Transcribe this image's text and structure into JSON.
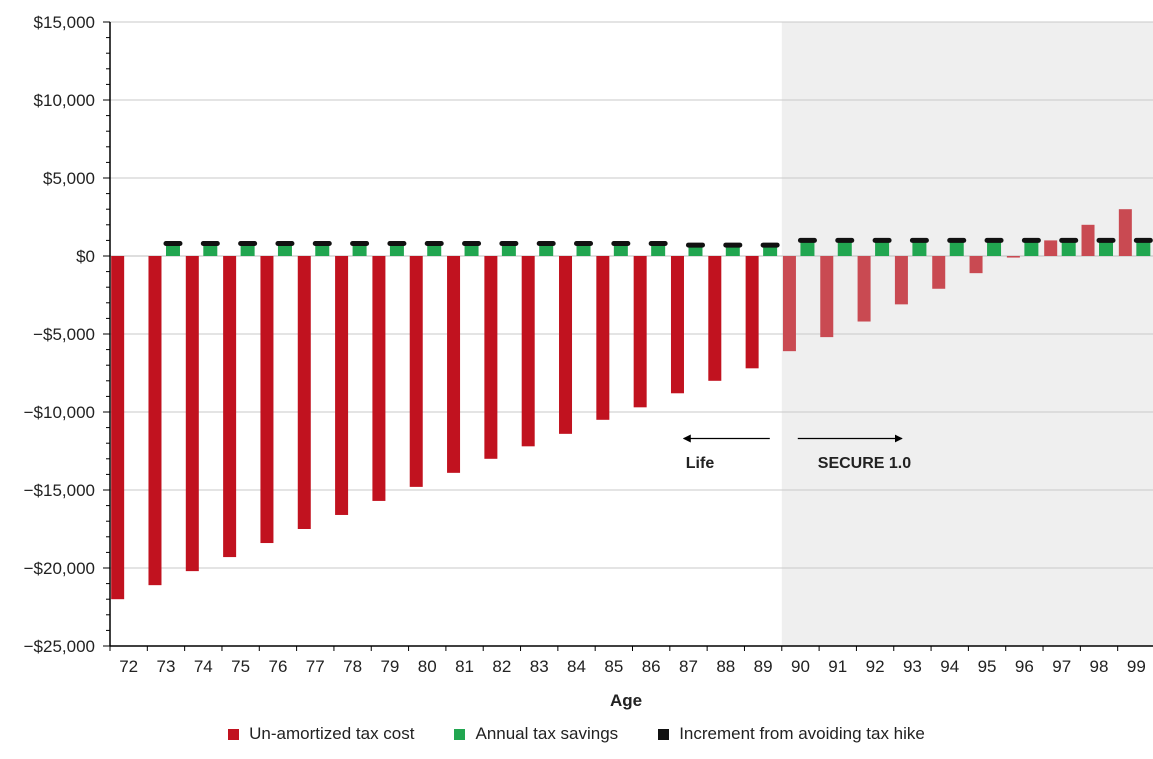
{
  "chart_data": {
    "type": "bar",
    "xlabel": "Age",
    "ylabel": "",
    "ylim": [
      -25000,
      15000
    ],
    "yticks": [
      15000,
      10000,
      5000,
      0,
      -5000,
      -10000,
      -15000,
      -20000,
      -25000
    ],
    "ytick_labels": [
      "$15,000",
      "$10,000",
      "$5,000",
      "$0",
      "−$5,000",
      "−$10,000",
      "−$15,000",
      "−$20,000",
      "−$25,000"
    ],
    "categories": [
      "72",
      "73",
      "74",
      "75",
      "76",
      "77",
      "78",
      "79",
      "80",
      "81",
      "82",
      "83",
      "84",
      "85",
      "86",
      "87",
      "88",
      "89",
      "90",
      "91",
      "92",
      "93",
      "94",
      "95",
      "96",
      "97",
      "98",
      "99"
    ],
    "series": [
      {
        "name": "Un-amortized tax cost",
        "color": "#c1121f",
        "faded_color": "#c94a52",
        "values": [
          -22000,
          -21100,
          -20200,
          -19300,
          -18400,
          -17500,
          -16600,
          -15700,
          -14800,
          -13900,
          -13000,
          -12200,
          -11400,
          -10500,
          -9700,
          -8800,
          -8000,
          -7200,
          -6100,
          -5200,
          -4200,
          -3100,
          -2100,
          -1100,
          -100,
          1000,
          2000,
          3000
        ]
      },
      {
        "name": "Annual tax savings",
        "color": "#21a650",
        "values": [
          0,
          800,
          800,
          800,
          800,
          800,
          800,
          800,
          800,
          800,
          800,
          800,
          800,
          800,
          800,
          700,
          700,
          700,
          1000,
          1000,
          1000,
          1000,
          1000,
          1000,
          1000,
          1000,
          1000,
          1000
        ]
      },
      {
        "name": "Increment from avoiding tax hike",
        "color": "#111111",
        "values": [
          0,
          800,
          800,
          800,
          800,
          800,
          800,
          800,
          800,
          800,
          800,
          800,
          800,
          800,
          800,
          700,
          700,
          700,
          1000,
          1000,
          1000,
          1000,
          1000,
          1000,
          1000,
          1000,
          1000,
          1000
        ]
      }
    ],
    "shaded_region": {
      "from_category": "90",
      "to_category": "99",
      "color": "#efefef"
    },
    "annotations": [
      {
        "text": "Life",
        "arrow": "left"
      },
      {
        "text": "SECURE 1.0",
        "arrow": "right"
      }
    ],
    "grid": true,
    "legend_position": "bottom"
  }
}
